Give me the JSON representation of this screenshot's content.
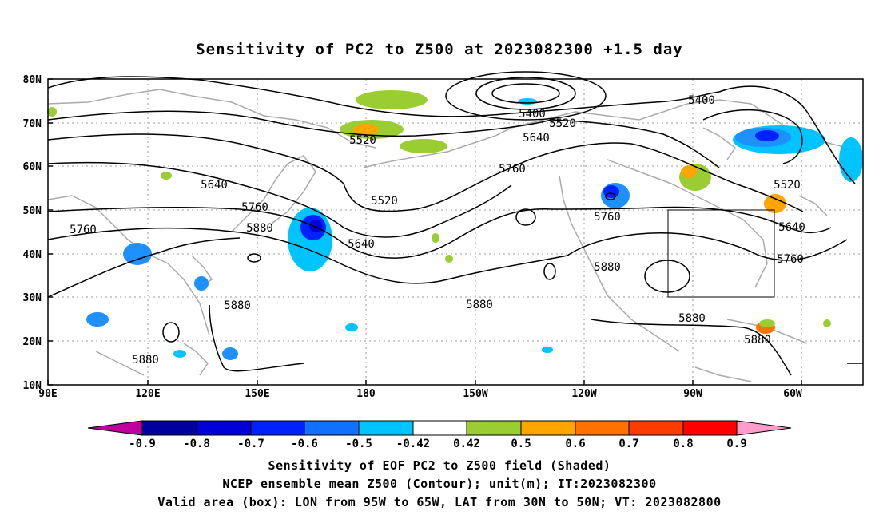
{
  "title": "Sensitivity of PC2 to Z500 at 2023082300 +1.5 day",
  "map": {
    "lon_ticks": [
      "90E",
      "120E",
      "150E",
      "180",
      "150W",
      "120W",
      "90W",
      "60W"
    ],
    "lat_ticks": [
      "80N",
      "70N",
      "60N",
      "50N",
      "40N",
      "30N",
      "20N",
      "10N"
    ],
    "valid_box": {
      "lon": [
        -95,
        -65
      ],
      "lat": [
        30,
        50
      ]
    },
    "contour_labels": [
      "5400",
      "5400",
      "5520",
      "5520",
      "5520",
      "5520",
      "5640",
      "5640",
      "5640",
      "5640",
      "5760",
      "5760",
      "5760",
      "5760",
      "5760",
      "5880",
      "5880",
      "5880",
      "5880",
      "5880",
      "5880"
    ]
  },
  "colorbar": {
    "labels": [
      "-0.9",
      "-0.8",
      "-0.7",
      "-0.6",
      "-0.5",
      "-0.42",
      "0.42",
      "0.5",
      "0.6",
      "0.7",
      "0.8",
      "0.9"
    ],
    "colors": [
      "#c0009e",
      "#00009e",
      "#0000d8",
      "#0022ff",
      "#1070ff",
      "#1e90ff",
      "#00c4ff",
      "#ffffff",
      "#9acd32",
      "#ffa500",
      "#ff7200",
      "#ff3c00",
      "#ff0000",
      "#ff9ccc"
    ]
  },
  "caption": {
    "line1": "Sensitivity of EOF PC2 to Z500 field (Shaded)",
    "line2": "NCEP ensemble mean Z500 (Contour); unit(m); IT:2023082300",
    "line3": "Valid area (box): LON from 95W to 65W, LAT from 30N to 50N; VT: 2023082800"
  }
}
